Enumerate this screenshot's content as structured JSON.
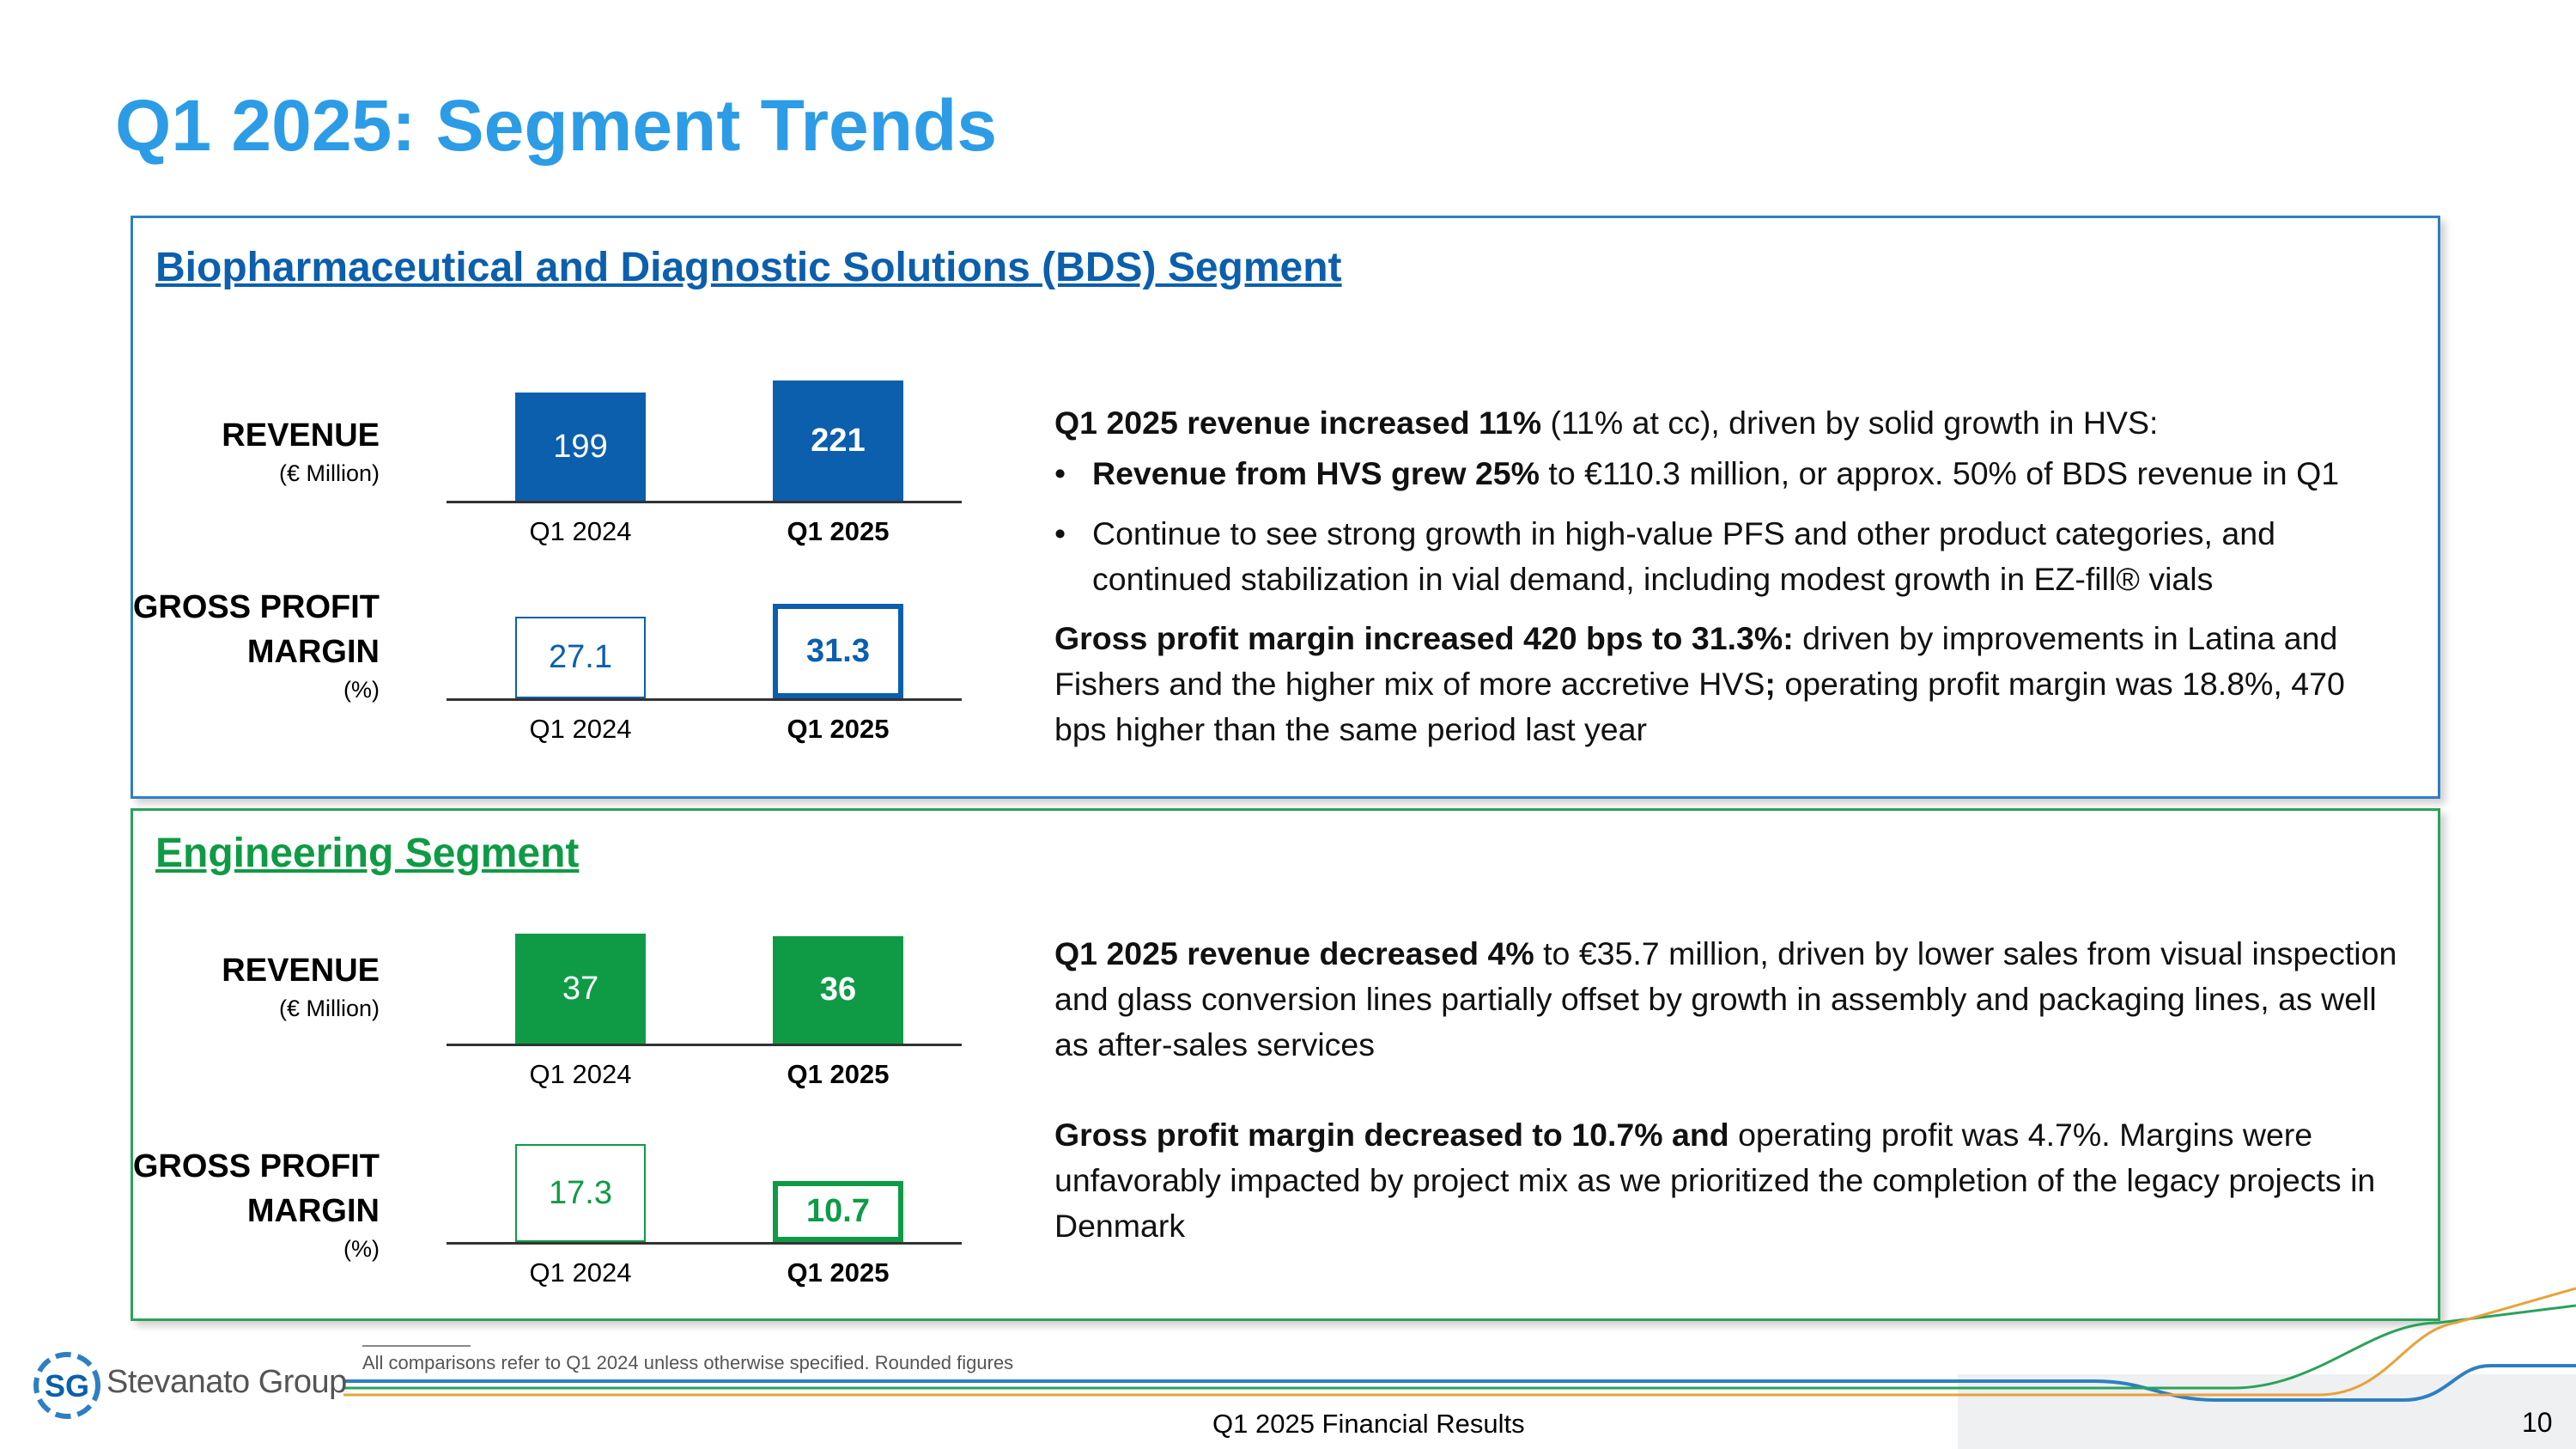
{
  "slide_title": "Q1 2025: Segment Trends",
  "bds": {
    "title": "Biopharmaceutical and Diagnostic Solutions (BDS) Segment",
    "revenue_label": "REVENUE",
    "revenue_unit": "(€ Million)",
    "gpm_label_1": "GROSS PROFIT",
    "gpm_label_2": "MARGIN",
    "gpm_unit": "(%)",
    "desc": {
      "p1_bold": "Q1 2025 revenue increased 11%",
      "p1_rest": " (11% at cc), driven by solid growth in HVS:",
      "b1_bold": "Revenue from HVS grew 25%",
      "b1_rest": " to €110.3 million, or approx. 50% of BDS revenue in Q1",
      "b2": "Continue to see strong growth in high-value PFS and other product categories, and continued stabilization in vial demand, including modest growth in EZ-fill® vials",
      "p2_bold": "Gross profit margin increased 420 bps to 31.3%:",
      "p2_rest": " driven by improvements in Latina and Fishers and the higher mix of more accretive HVS",
      "p2_semi": ";",
      "p2_rest2": " operating profit margin was 18.8%, 470 bps higher than the same period last year"
    }
  },
  "engineering": {
    "title": "Engineering Segment",
    "revenue_label": "REVENUE",
    "revenue_unit": "(€ Million)",
    "gpm_label_1": "GROSS PROFIT",
    "gpm_label_2": "MARGIN",
    "gpm_unit": "(%)",
    "desc": {
      "p1_bold": "Q1 2025 revenue decreased 4%",
      "p1_rest": " to €35.7 million, driven by lower sales from visual inspection and glass conversion lines partially offset by growth in assembly and packaging lines, as well as after-sales services",
      "p2_bold": "Gross profit margin decreased to 10.7% and",
      "p2_rest": " operating profit was 4.7%. Margins were unfavorably impacted by project mix as we prioritized the completion of the legacy projects in Denmark"
    }
  },
  "chart_data": [
    {
      "type": "bar",
      "panel": "BDS",
      "metric": "REVENUE (€ Million)",
      "categories": [
        "Q1 2024",
        "Q1 2025"
      ],
      "values": [
        199,
        221
      ],
      "labels": [
        "199",
        "221"
      ],
      "ylim": [
        0,
        221
      ]
    },
    {
      "type": "bar",
      "panel": "BDS",
      "metric": "GROSS PROFIT MARGIN (%)",
      "categories": [
        "Q1 2024",
        "Q1 2025"
      ],
      "values": [
        27.1,
        31.3
      ],
      "labels": [
        "27.1",
        "31.3"
      ],
      "ylim": [
        0,
        31.3
      ]
    },
    {
      "type": "bar",
      "panel": "Engineering",
      "metric": "REVENUE (€ Million)",
      "categories": [
        "Q1 2024",
        "Q1 2025"
      ],
      "values": [
        37,
        36
      ],
      "labels": [
        "37",
        "36"
      ],
      "ylim": [
        0,
        37
      ]
    },
    {
      "type": "bar",
      "panel": "Engineering",
      "metric": "GROSS PROFIT MARGIN (%)",
      "categories": [
        "Q1 2024",
        "Q1 2025"
      ],
      "values": [
        17.3,
        10.7
      ],
      "labels": [
        "17.3",
        "10.7"
      ],
      "ylim": [
        0,
        17.3
      ]
    }
  ],
  "colors": {
    "title": "#2d9ce6",
    "bds_dark": "#0b5fad",
    "bds_outline": "#2e7fc2",
    "eng_dark": "#0f9b46",
    "eng_outline": "#2aa25a"
  },
  "footer": {
    "footnote": "All comparisons refer to Q1 2024 unless otherwise specified. Rounded figures",
    "center": "Q1 2025 Financial Results",
    "page": "10",
    "logo_mark": "SG",
    "logo_text": "Stevanato Group"
  }
}
